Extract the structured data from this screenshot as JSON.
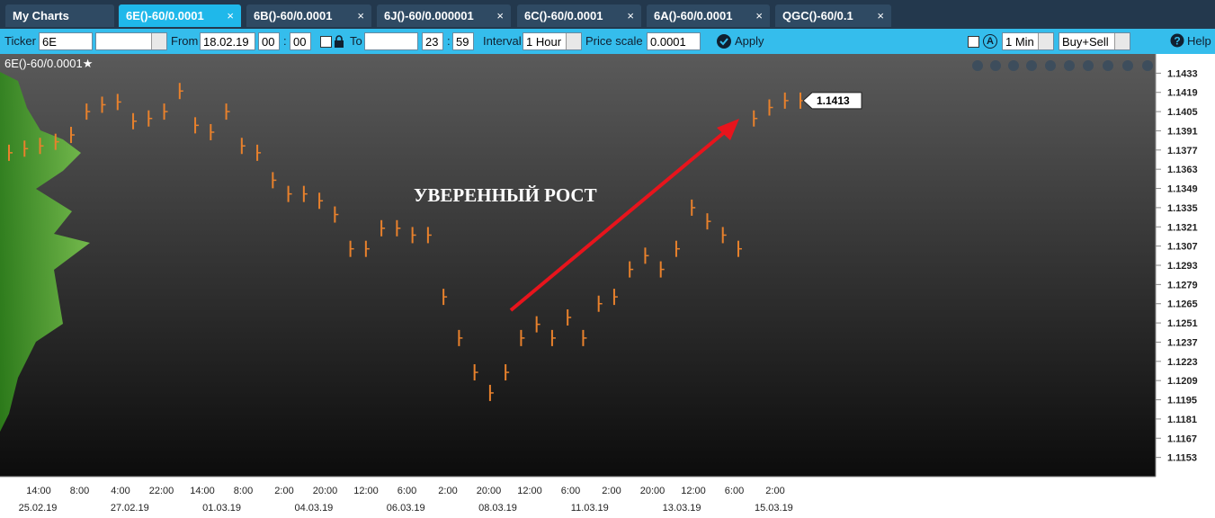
{
  "tabs": [
    "My Charts",
    "6E()-60/0.0001",
    "6B()-60/0.0001",
    "6J()-60/0.000001",
    "6C()-60/0.0001",
    "6A()-60/0.0001",
    "QGC()-60/0.1"
  ],
  "toolbar": {
    "ticker_label": "Ticker",
    "ticker": "6E",
    "from_label": "From",
    "from_date": "18.02.19",
    "from_hour": "00",
    "from_minute": "00",
    "separator": ":",
    "to_label": "To",
    "to_hour": "23",
    "to_minute": "59",
    "interval_label": "Interval",
    "interval": "1 Hour",
    "price_scale_label": "Price scale",
    "price_scale": "0.0001",
    "apply": "Apply",
    "a_icon": "A",
    "period": "1 Min",
    "side": "Buy+Sell",
    "help": "Help"
  },
  "chart_data": {
    "type": "bar",
    "title": "6E()-60/0.0001★",
    "annotation": "УВЕРЕННЫЙ РОСТ",
    "last_price": 1.1413,
    "color": "#e8812c",
    "values": [
      1.1375,
      1.1378,
      1.138,
      1.1383,
      1.1388,
      1.1405,
      1.141,
      1.1412,
      1.1398,
      1.14,
      1.1405,
      1.142,
      1.1395,
      1.139,
      1.1405,
      1.138,
      1.1375,
      1.1355,
      1.1345,
      1.1345,
      1.134,
      1.133,
      1.1305,
      1.1305,
      1.132,
      1.132,
      1.1315,
      1.1315,
      1.127,
      1.124,
      1.1215,
      1.12,
      1.1215,
      1.124,
      1.125,
      1.124,
      1.1255,
      1.124,
      1.1265,
      1.127,
      1.129,
      1.13,
      1.129,
      1.1305,
      1.1335,
      1.1325,
      1.1315,
      1.1305,
      1.14,
      1.1408,
      1.1413,
      1.1413
    ],
    "ylim": [
      1.1447,
      1.1139
    ],
    "yticks": [
      1.1433,
      1.1419,
      1.1405,
      1.1391,
      1.1377,
      1.1363,
      1.1349,
      1.1335,
      1.1321,
      1.1307,
      1.1293,
      1.1279,
      1.1265,
      1.1251,
      1.1237,
      1.1223,
      1.1209,
      1.1195,
      1.1181,
      1.1167,
      1.1153
    ],
    "time_labels": [
      "14:00",
      "8:00",
      "4:00",
      "22:00",
      "14:00",
      "8:00",
      "2:00",
      "20:00",
      "12:00",
      "6:00",
      "2:00",
      "20:00",
      "12:00",
      "6:00",
      "2:00",
      "20:00",
      "12:00",
      "6:00",
      "2:00"
    ],
    "date_labels": [
      "25.02.19",
      "27.02.19",
      "01.03.19",
      "04.03.19",
      "06.03.19",
      "08.03.19",
      "11.03.19",
      "13.03.19",
      "15.03.19"
    ]
  }
}
